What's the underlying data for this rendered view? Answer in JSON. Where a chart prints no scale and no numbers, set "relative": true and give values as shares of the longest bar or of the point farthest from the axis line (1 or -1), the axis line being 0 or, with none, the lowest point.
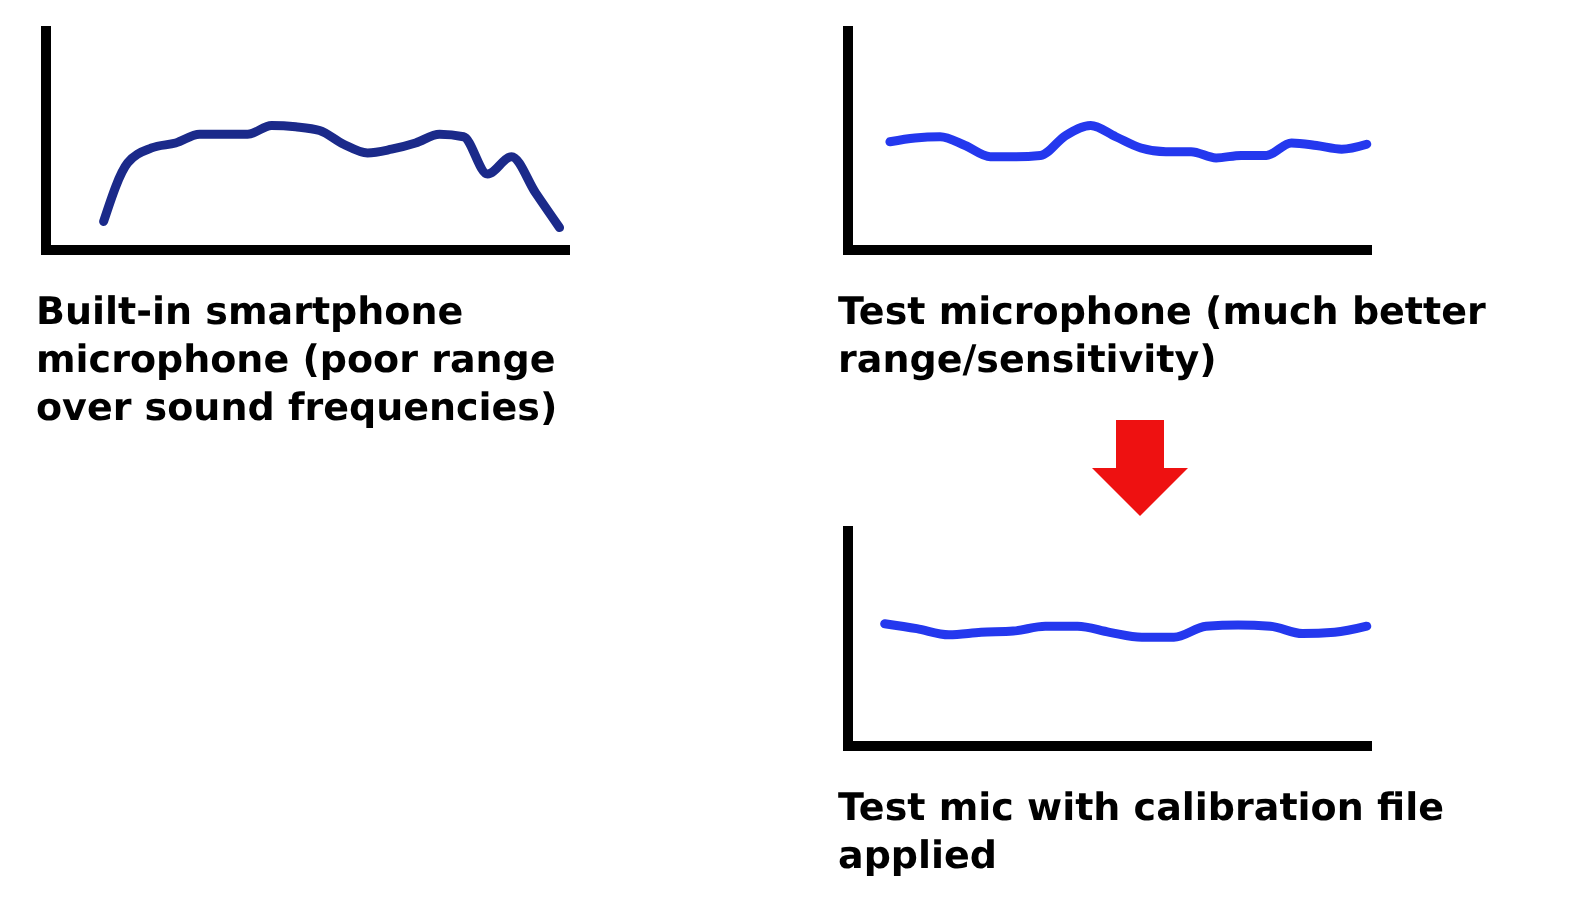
{
  "chart_data": [
    {
      "type": "line",
      "relative": true,
      "title": "Built-in smartphone microphone (poor range over sound frequencies)",
      "categories": [
        null,
        null,
        null,
        null,
        null,
        null,
        null,
        null,
        null,
        null,
        null,
        null,
        null,
        null,
        null,
        null,
        null,
        null,
        null,
        null
      ],
      "series": [
        {
          "color": "#1b2a8a",
          "values": [
            0.23,
            0.7,
            0.82,
            0.86,
            0.93,
            0.93,
            0.93,
            1,
            0.99,
            0.96,
            0.85,
            0.78,
            0.81,
            0.86,
            0.93,
            0.91,
            0.61,
            0.75,
            0.46,
            0.18
          ]
        }
      ]
    },
    {
      "type": "line",
      "relative": true,
      "title": "Test microphone (much better range/sensitivity)",
      "categories": [
        null,
        null,
        null,
        null,
        null,
        null,
        null,
        null,
        null,
        null,
        null,
        null,
        null,
        null,
        null,
        null,
        null,
        null,
        null,
        null
      ],
      "series": [
        {
          "color": "#2438ee",
          "values": [
            0.87,
            0.9,
            0.91,
            0.84,
            0.75,
            0.75,
            0.76,
            0.92,
            1,
            0.91,
            0.82,
            0.79,
            0.79,
            0.74,
            0.76,
            0.76,
            0.86,
            0.84,
            0.81,
            0.85
          ]
        }
      ]
    },
    {
      "type": "line",
      "relative": true,
      "title": "Test mic with calibration file applied",
      "categories": [
        null,
        null,
        null,
        null,
        null,
        null,
        null,
        null,
        null,
        null,
        null,
        null,
        null,
        null,
        null,
        null
      ],
      "series": [
        {
          "color": "#2438ee",
          "values": [
            1,
            0.96,
            0.91,
            0.93,
            0.94,
            0.98,
            0.98,
            0.93,
            0.89,
            0.89,
            0.98,
            0.99,
            0.98,
            0.92,
            0.93,
            0.98
          ]
        }
      ]
    }
  ]
}
